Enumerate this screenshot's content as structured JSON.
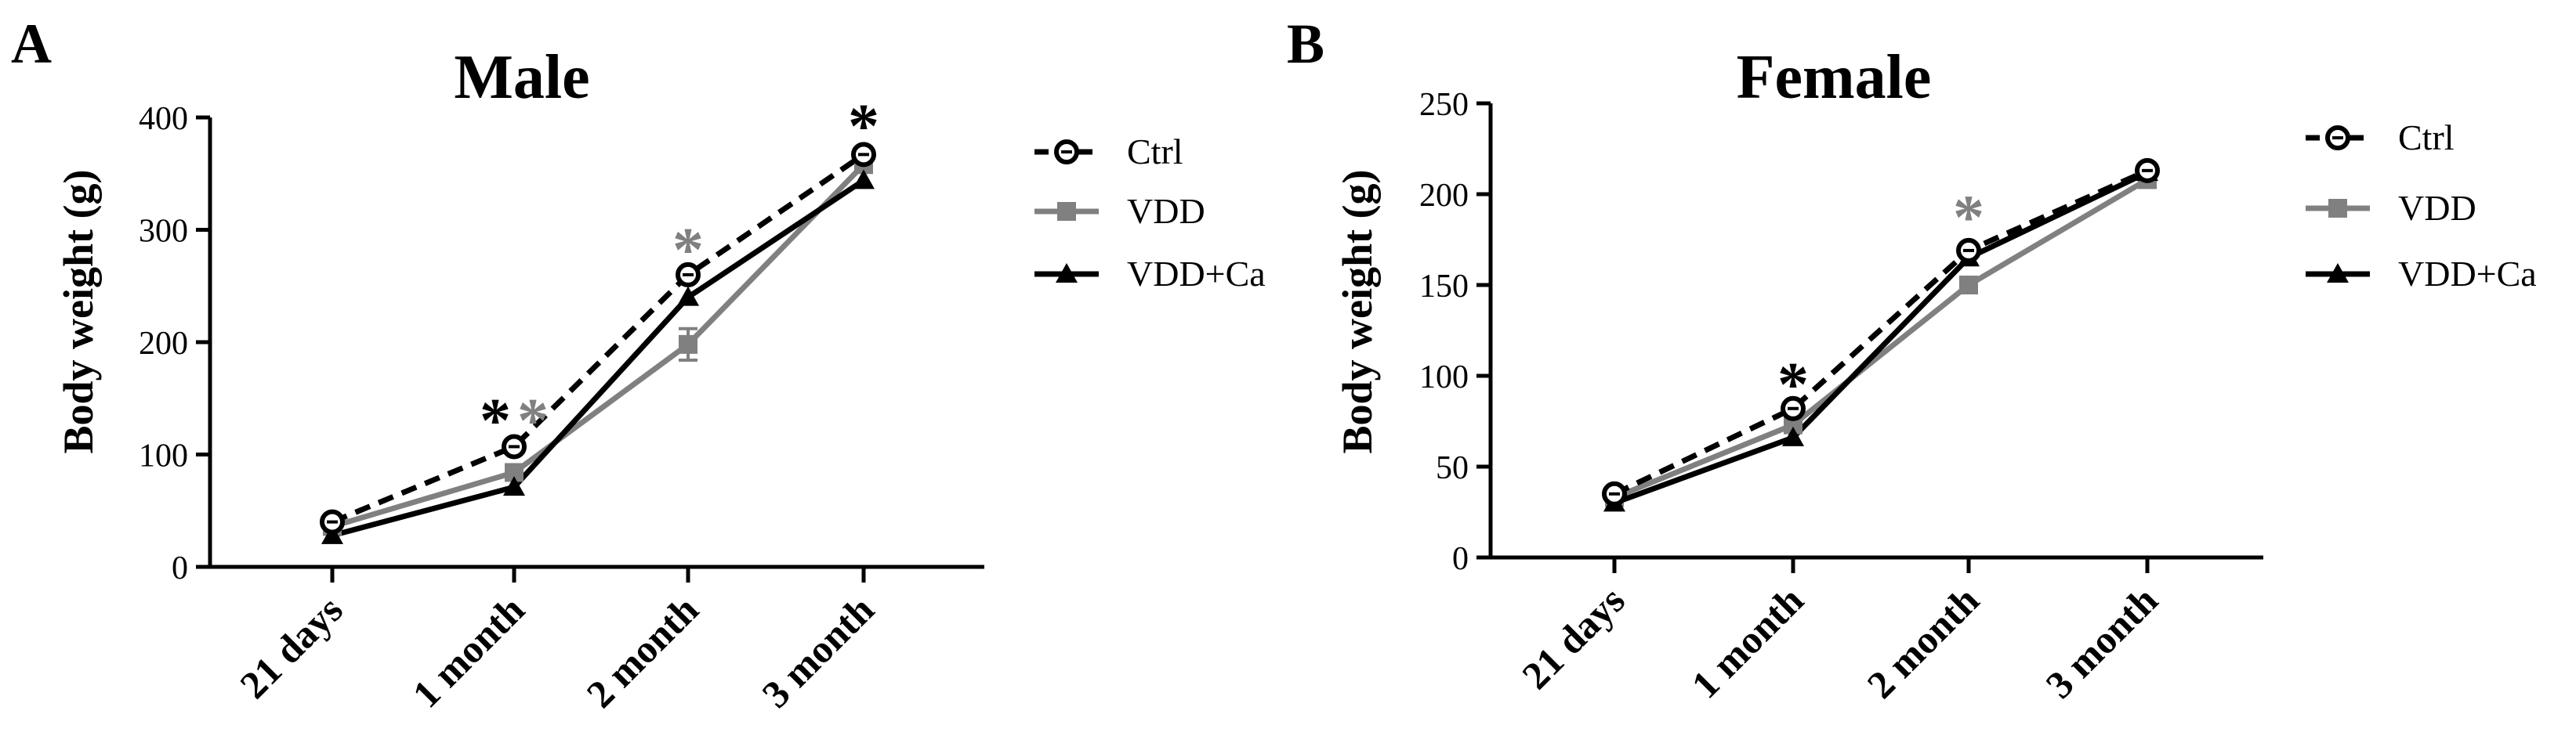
{
  "chart_data": [
    {
      "panel_label": "A",
      "type": "line",
      "title": "Male",
      "ylabel": "Body weight (g)",
      "xlabel": "",
      "categories": [
        "21 days",
        "1 month",
        "2 month",
        "3 month"
      ],
      "ylim": [
        0,
        400
      ],
      "yticks": [
        0,
        100,
        200,
        300,
        400
      ],
      "legend": "right",
      "series": [
        {
          "name": "Ctrl",
          "values": [
            40,
            107,
            260,
            367
          ],
          "style": "dashed",
          "marker": "circle",
          "color": "#000000"
        },
        {
          "name": "VDD",
          "values": [
            36,
            84,
            198,
            358
          ],
          "errors": [
            0,
            0,
            14,
            0
          ],
          "style": "solid",
          "marker": "square",
          "color": "#808080"
        },
        {
          "name": "VDD+Ca",
          "values": [
            28,
            71,
            240,
            344
          ],
          "style": "solid",
          "marker": "triangle",
          "color": "#000000"
        }
      ],
      "annotations": [
        {
          "text": "*",
          "x": "1 month",
          "y": 138,
          "color": "#000000",
          "offset": -1
        },
        {
          "text": "*",
          "x": "1 month",
          "y": 138,
          "color": "#808080",
          "offset": 1
        },
        {
          "text": "*",
          "x": "2 month",
          "y": 290,
          "color": "#808080",
          "offset": 0
        },
        {
          "text": "*",
          "x": "3 month",
          "y": 400,
          "color": "#000000",
          "offset": 0
        }
      ]
    },
    {
      "panel_label": "B",
      "type": "line",
      "title": "Female",
      "ylabel": "Body weight (g)",
      "xlabel": "",
      "categories": [
        "21 days",
        "1 month",
        "2 month",
        "3 month"
      ],
      "ylim": [
        0,
        250
      ],
      "yticks": [
        0,
        50,
        100,
        150,
        200,
        250
      ],
      "legend": "right",
      "series": [
        {
          "name": "Ctrl",
          "values": [
            35,
            82,
            169,
            213
          ],
          "style": "dashed",
          "marker": "circle",
          "color": "#000000"
        },
        {
          "name": "VDD",
          "values": [
            33,
            73,
            150,
            208
          ],
          "style": "solid",
          "marker": "square",
          "color": "#808080"
        },
        {
          "name": "VDD+Ca",
          "values": [
            30,
            66,
            165,
            212
          ],
          "style": "solid",
          "marker": "triangle",
          "color": "#000000"
        }
      ],
      "annotations": [
        {
          "text": "*",
          "x": "1 month",
          "y": 100,
          "color": "#000000",
          "offset": 0
        },
        {
          "text": "*",
          "x": "2 month",
          "y": 192,
          "color": "#808080",
          "offset": 0
        }
      ]
    }
  ]
}
